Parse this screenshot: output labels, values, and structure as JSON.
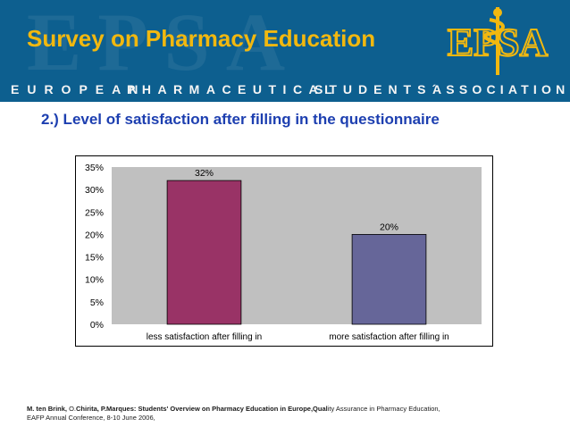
{
  "slide": {
    "title": "Survey on Pharmacy Education",
    "org_words": [
      "EUROPEAN",
      "PHARMACEUTICAL",
      "STUDENTS´",
      "ASSOCIATION"
    ],
    "logo_text": "EPSA",
    "subtitle": "2.) Level of satisfaction after filling in the questionnaire"
  },
  "colors": {
    "header_bg": "#0d5f8f",
    "title": "#f2b80f",
    "subtitle": "#1d3fb0",
    "plot_bg": "#c0c0c0"
  },
  "chart_data": {
    "type": "bar",
    "title": "",
    "xlabel": "",
    "ylabel": "",
    "categories": [
      "less satisfaction after filling in",
      "more satisfaction after filling in"
    ],
    "values": [
      32,
      20
    ],
    "data_labels": [
      "32%",
      "20%"
    ],
    "bar_colors": [
      "#993366",
      "#666699"
    ],
    "ylim": [
      0,
      35
    ],
    "yticks": [
      0,
      5,
      10,
      15,
      20,
      25,
      30,
      35
    ],
    "ytick_labels": [
      "0%",
      "5%",
      "10%",
      "15%",
      "20%",
      "25%",
      "30%",
      "35%"
    ],
    "grid": false,
    "legend": "none"
  },
  "footer": {
    "line1_bold": "M. ten Brink, ",
    "line1_name2": "O.",
    "line1_bold2": "Chirita, P.Marques: Students' Overview on Pharmacy Education in Europe,Qual",
    "line1_rest": "ity Assurance in Pharmacy Education,",
    "line2": "EAFP Annual Conference, 8-10 June 2006,"
  }
}
